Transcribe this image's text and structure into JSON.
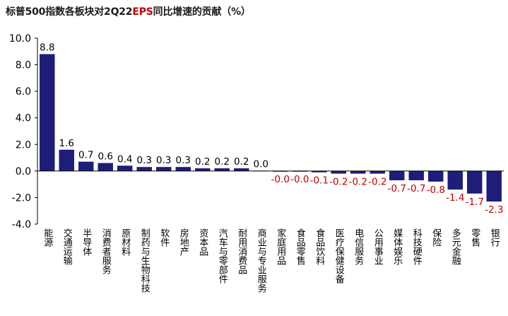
{
  "title": {
    "part1": "标普500指数各板块对2Q22",
    "highlight": "EPS",
    "part2": "同比增速的贡献（%）"
  },
  "colors": {
    "bar": "#1f1d7a",
    "positive_label": "#000000",
    "negative_label": "#c00000",
    "axis": "#000000"
  },
  "chart_data": {
    "type": "bar",
    "title": "标普500指数各板块对2Q22EPS同比增速的贡献（%）",
    "xlabel": "",
    "ylabel": "",
    "ylim": [
      -4.0,
      10.0
    ],
    "yticks": [
      "10.0",
      "8.0",
      "6.0",
      "4.0",
      "2.0",
      "0.0",
      "-2.0",
      "-4.0"
    ],
    "ytick_values": [
      10,
      8,
      6,
      4,
      2,
      0,
      -2,
      -4
    ],
    "grid": false,
    "categories": [
      "能源",
      "交通运输",
      "半导体",
      "消费者服务",
      "原材料",
      "制药与生物科技",
      "软件",
      "房地产",
      "资本品",
      "汽车与零部件",
      "耐用消费品",
      "商业与专业服务",
      "家庭用品",
      "食品零售",
      "食品饮料",
      "医疗保健设备",
      "电信服务",
      "公用事业",
      "媒体娱乐",
      "科技硬件",
      "保险",
      "多元金融",
      "零售",
      "银行"
    ],
    "values": [
      8.8,
      1.6,
      0.7,
      0.6,
      0.4,
      0.3,
      0.3,
      0.3,
      0.2,
      0.2,
      0.2,
      0.02,
      -0.02,
      -0.02,
      -0.1,
      -0.2,
      -0.2,
      -0.2,
      -0.7,
      -0.7,
      -0.8,
      -1.4,
      -1.7,
      -2.3
    ],
    "data_labels": [
      "8.8",
      "1.6",
      "0.7",
      "0.6",
      "0.4",
      "0.3",
      "0.3",
      "0.3",
      "0.2",
      "0.2",
      "0.2",
      "0.0",
      "-0.0",
      "-0.0",
      "-0.1",
      "-0.2",
      "-0.2",
      "-0.2",
      "-0.7",
      "-0.7",
      "-0.8",
      "-1.4",
      "-1.7",
      "-2.3"
    ]
  }
}
